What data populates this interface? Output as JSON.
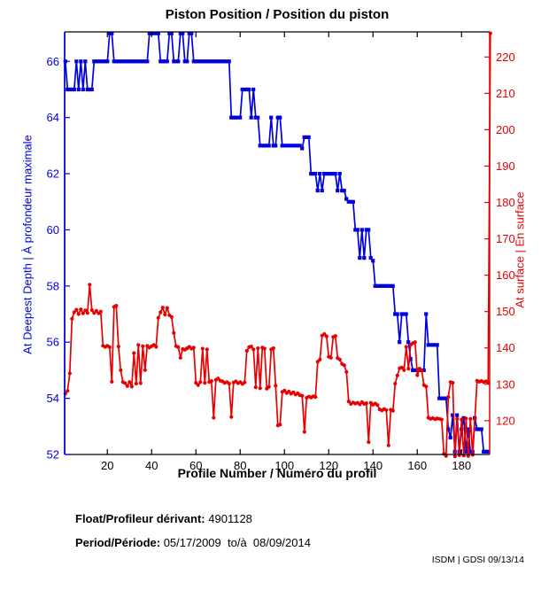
{
  "title": "Piston Position / Position du piston",
  "footer": {
    "float_label": "Float/Profileur dérivant:",
    "float_value": "4901128",
    "period_label": "Period/Période:",
    "period_value": "05/17/2009  to/à  08/09/2014"
  },
  "watermark": "ISDM | GDSI 09/13/14",
  "chart_data": {
    "type": "line",
    "title": "Piston Position / Position du piston",
    "xlabel": "Profile Number / Numéro du profil",
    "ylabel_left": "At Deepest Depth | À profondeur maximale",
    "ylabel_right": "At surface | En surface",
    "grid": false,
    "legend": "none",
    "xlim": [
      0.7,
      192.7
    ],
    "ylim_left": [
      52,
      67.05
    ],
    "ylim_right": [
      110.7,
      226.9
    ],
    "xticks": [
      20,
      40,
      60,
      80,
      100,
      120,
      140,
      160,
      180
    ],
    "yticks_left": [
      52,
      54,
      56,
      58,
      60,
      62,
      64,
      66
    ],
    "yticks_right": [
      120,
      130,
      140,
      150,
      160,
      170,
      180,
      190,
      200,
      210,
      220
    ],
    "colors": {
      "left_axis": "#0000e0",
      "right_axis": "#e80000",
      "frame": "#000000"
    },
    "series": [
      {
        "name": "At Deepest Depth | À profondeur maximale",
        "axis": "left",
        "color": "#0000e0",
        "marker": "square",
        "x_start": 1,
        "values": [
          66,
          65,
          65,
          65,
          65,
          66,
          65,
          66,
          65,
          66,
          65,
          65,
          65,
          66,
          66,
          66,
          66,
          66,
          66,
          66,
          67,
          67,
          66,
          66,
          66,
          66,
          66,
          66,
          66,
          66,
          66,
          66,
          66,
          66,
          66,
          66,
          66,
          66,
          67,
          67,
          67,
          67,
          67,
          66,
          66,
          66,
          66,
          67,
          67,
          66,
          66,
          66,
          67,
          67,
          66,
          66,
          67,
          67,
          66,
          66,
          66,
          66,
          66,
          66,
          66,
          66,
          66,
          66,
          66,
          66,
          66,
          66,
          66,
          66,
          66,
          64,
          64,
          64,
          64,
          64,
          65,
          65,
          65,
          65,
          64,
          65,
          64,
          64,
          63,
          63,
          63,
          63,
          63,
          64,
          63,
          63,
          64,
          64,
          63,
          63,
          63,
          63,
          63,
          63,
          63,
          63,
          63,
          62.9,
          63.3,
          63.3,
          63.3,
          62,
          62,
          62,
          61.4,
          62,
          61.4,
          62,
          62,
          62,
          62,
          62,
          62,
          61.4,
          62,
          61.4,
          61.4,
          61.1,
          61,
          61,
          61,
          60,
          60,
          59,
          60,
          59,
          60,
          60,
          59,
          58.9,
          58,
          58,
          58,
          58,
          58,
          58,
          58,
          58,
          58,
          57,
          57,
          56,
          57,
          57,
          57,
          56,
          55.4,
          55,
          55,
          55,
          55,
          55,
          55,
          57,
          55.9,
          55.9,
          55.9,
          55.9,
          55.9,
          54,
          54,
          54,
          54,
          52.9,
          52.6,
          53.4,
          52.1,
          53.4,
          52.1,
          52.9,
          53.3,
          52.1,
          52.9,
          52.1,
          52.1,
          53.3,
          52.9,
          52.9,
          52.9,
          52.1,
          52.1,
          52.1
        ]
      },
      {
        "name": "At surface | En surface",
        "axis": "right",
        "color": "#e80000",
        "marker": "circle",
        "x_start": 1,
        "values": [
          127.4,
          128.2,
          133.0,
          148.0,
          149.8,
          150.5,
          149.3,
          150.6,
          149.5,
          150.3,
          149.6,
          157.4,
          150.4,
          149.6,
          150.2,
          149.5,
          150.0,
          140.6,
          140.3,
          140.6,
          140.2,
          130.7,
          151.3,
          151.6,
          140.4,
          133.9,
          130.6,
          130.3,
          129.5,
          130.6,
          129.4,
          138.6,
          130.2,
          140.8,
          130.3,
          140.5,
          133.9,
          140.6,
          140.1,
          140.5,
          140.8,
          140.3,
          148.3,
          149.8,
          151.1,
          149.2,
          151.0,
          149.0,
          148.5,
          144.1,
          140.5,
          140.2,
          137.3,
          139.7,
          139.5,
          139.9,
          140.3,
          139.8,
          140.1,
          130.4,
          129.8,
          130.6,
          139.8,
          130.4,
          139.6,
          130.6,
          130.9,
          120.8,
          131.2,
          131.6,
          131.0,
          130.8,
          130.4,
          130.6,
          130.2,
          121.0,
          130.5,
          130.8,
          130.3,
          130.6,
          130.1,
          130.5,
          139.2,
          140.2,
          140.4,
          139.6,
          129.2,
          139.9,
          128.9,
          140.1,
          139.8,
          128.8,
          129.3,
          139.6,
          139.9,
          129.6,
          118.7,
          118.9,
          127.9,
          128.3,
          127.6,
          128.0,
          127.4,
          127.8,
          127.2,
          127.5,
          127.0,
          126.8,
          116.9,
          126.3,
          126.6,
          126.4,
          126.7,
          126.5,
          136.2,
          136.8,
          143.4,
          143.8,
          143.2,
          137.6,
          137.3,
          143.0,
          143.3,
          137.2,
          136.8,
          135.6,
          135.2,
          133.4,
          125.3,
          124.6,
          125.0,
          124.7,
          124.9,
          124.5,
          125.1,
          124.6,
          124.8,
          114.1,
          124.9,
          124.4,
          124.7,
          124.3,
          123.1,
          122.8,
          123.2,
          122.9,
          113.2,
          123.0,
          122.7,
          130.2,
          132.4,
          134.4,
          134.6,
          133.9,
          140.3,
          134.3,
          140.9,
          141.3,
          141.6,
          132.5,
          134.3,
          133.8,
          129.8,
          129.4,
          120.8,
          120.5,
          120.7,
          120.4,
          120.6,
          120.5,
          120.3,
          110.9,
          110.3,
          126.5,
          130.6,
          130.4,
          110.2,
          120.5,
          110.5,
          120.3,
          110.4,
          120.6,
          110.3,
          120.5,
          110.6,
          120.4,
          131.0,
          130.7,
          130.9,
          130.6,
          130.8,
          130.5,
          226.5
        ]
      }
    ]
  }
}
